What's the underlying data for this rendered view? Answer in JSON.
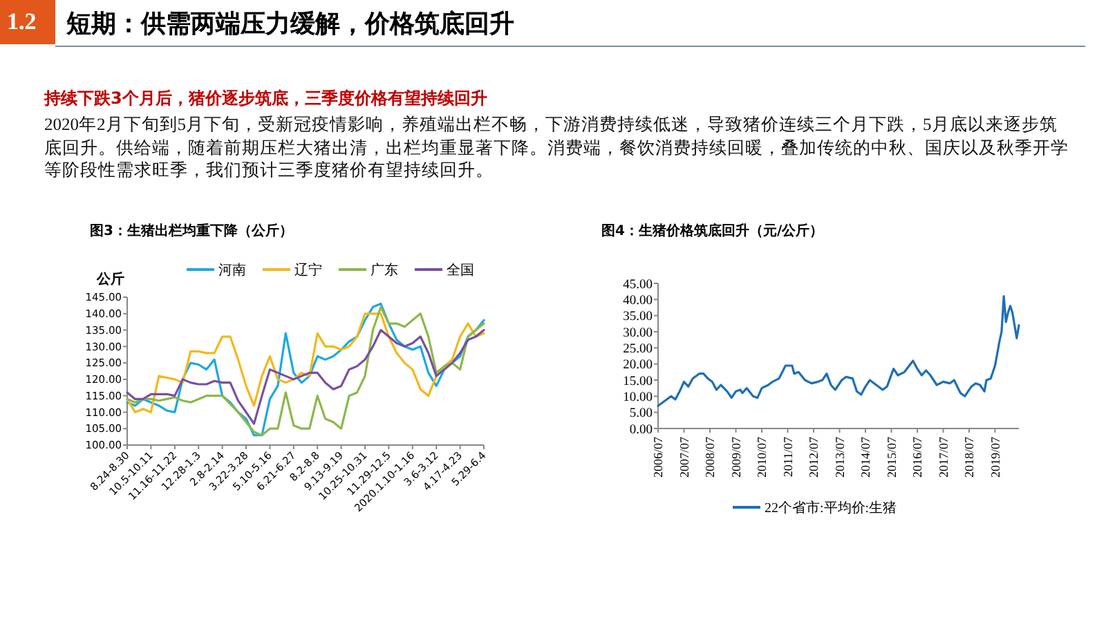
{
  "chart_data": [
    {
      "type": "other",
      "title": "短期：供需两端压力缓解，价格筑底回升",
      "subtitle": "持续下跌3个月后，猪价逐步筑底，三季度价格有望持续回升",
      "annotations": [
        "1.2",
        "2020年2月下旬到5月下旬，受新冠疫情影响，养殖端出栏不畅，下游消费持续低迷，导致猪价连续三个月下跌，5月底以来逐步筑底回升。供给端，随着前期压栏大猪出清，出栏均重显著下降。消费端，餐饮消费持续回暖，叠加传统的中秋、国庆以及秋季开学等阶段性需求旺季，我们预计三季度猪价有望持续回升。"
      ]
    },
    {
      "type": "line",
      "title": "图3：生猪出栏均重下降（公斤）",
      "ylabel": "公斤",
      "legend": "top",
      "categories": [
        "8.24-8.30",
        null,
        null,
        "10.5-10.11",
        null,
        null,
        "11.16-11.22",
        null,
        null,
        "12.28-1.3",
        null,
        null,
        "2.8-2.14",
        null,
        null,
        "3.22-3.28",
        null,
        null,
        "5.10-5.16",
        null,
        null,
        "6.21-6.27",
        null,
        null,
        "8.2-8.8",
        null,
        null,
        "9.13-9.19",
        null,
        null,
        "10.25-10.31",
        null,
        null,
        "11.29-12.5",
        null,
        null,
        "2020.1.10-1.16",
        null,
        null,
        "3.6-3.12",
        null,
        null,
        "4.17-4.23",
        null,
        null,
        "5.29-6.4"
      ],
      "ylim": [
        100,
        145
      ],
      "yticks": [
        {
          "value": 100,
          "label": "100.00"
        },
        {
          "value": 105,
          "label": "105.00"
        },
        {
          "value": 110,
          "label": "110.00"
        },
        {
          "value": 115,
          "label": "115.00"
        },
        {
          "value": 120,
          "label": "120.00"
        },
        {
          "value": 125,
          "label": "125.00"
        },
        {
          "value": 130,
          "label": "130.00"
        },
        {
          "value": 135,
          "label": "135.00"
        },
        {
          "value": 140,
          "label": "140.00"
        },
        {
          "value": 145,
          "label": "145.00"
        }
      ],
      "series": [
        {
          "name": "河南",
          "color": "#1fa8e0",
          "values": [
            113,
            112,
            114,
            113,
            112,
            110.5,
            110,
            120,
            125,
            124.5,
            123,
            126,
            115,
            113,
            110,
            108,
            103,
            103,
            114,
            118,
            134,
            122,
            119,
            121,
            127,
            126,
            127,
            129,
            131.5,
            133,
            138,
            142,
            143,
            137,
            132,
            130,
            129,
            130,
            122,
            118,
            123,
            125,
            127,
            133,
            135,
            138
          ]
        },
        {
          "name": "辽宁",
          "color": "#f2b81c",
          "values": [
            114,
            110,
            111,
            110,
            121,
            120.5,
            120,
            119,
            128.5,
            128.5,
            128,
            128,
            133,
            133,
            126,
            118,
            112,
            121,
            127,
            120,
            119,
            120,
            122,
            121,
            134,
            130,
            130,
            129,
            130,
            133,
            140,
            140,
            140,
            133,
            128,
            125,
            123,
            117,
            115,
            121,
            124,
            126,
            133,
            137,
            133,
            134
          ]
        },
        {
          "name": "广东",
          "color": "#8cb84a",
          "values": [
            114,
            113,
            114,
            114,
            113.5,
            114,
            114.5,
            113.5,
            113,
            114,
            115,
            115,
            115,
            112.5,
            110,
            107,
            104,
            103,
            105,
            105,
            116,
            106,
            105,
            105,
            115,
            108,
            107,
            105,
            115,
            116,
            121,
            135,
            142,
            137,
            137,
            136,
            138,
            140,
            133,
            122,
            124,
            125,
            123,
            133,
            135,
            137
          ]
        },
        {
          "name": "全国",
          "color": "#7a4fa0",
          "values": [
            116,
            114,
            114,
            115.5,
            115.5,
            115.5,
            115,
            120,
            119,
            118.5,
            118.5,
            119.5,
            119,
            119,
            113.5,
            110,
            106.5,
            115,
            123,
            122,
            121,
            120,
            121,
            122,
            122,
            119,
            117,
            118,
            123,
            124,
            126,
            130,
            135,
            133,
            131,
            130,
            131,
            133,
            128,
            121,
            123,
            125,
            128,
            132,
            133,
            135
          ]
        }
      ]
    },
    {
      "type": "line",
      "title": "图4：生猪价格筑底回升（元/公斤）",
      "legend": "bottom",
      "xlim": [
        "2006-07",
        "2020-06"
      ],
      "xticks": [
        {
          "value": "2006-07",
          "label": "2006/07"
        },
        {
          "value": "2007-07",
          "label": "2007/07"
        },
        {
          "value": "2008-07",
          "label": "2008/07"
        },
        {
          "value": "2009-07",
          "label": "2009/07"
        },
        {
          "value": "2010-07",
          "label": "2010/07"
        },
        {
          "value": "2011-07",
          "label": "2011/07"
        },
        {
          "value": "2012-07",
          "label": "2012/07"
        },
        {
          "value": "2013-07",
          "label": "2013/07"
        },
        {
          "value": "2014-07",
          "label": "2014/07"
        },
        {
          "value": "2015-07",
          "label": "2015/07"
        },
        {
          "value": "2016-07",
          "label": "2016/07"
        },
        {
          "value": "2017-07",
          "label": "2017/07"
        },
        {
          "value": "2018-07",
          "label": "2018/07"
        },
        {
          "value": "2019-07",
          "label": "2019/07"
        }
      ],
      "ylim": [
        0,
        45
      ],
      "yticks": [
        {
          "value": 0,
          "label": "0.00"
        },
        {
          "value": 5,
          "label": "5.00"
        },
        {
          "value": 10,
          "label": "10.00"
        },
        {
          "value": 15,
          "label": "15.00"
        },
        {
          "value": 20,
          "label": "20.00"
        },
        {
          "value": 25,
          "label": "25.00"
        },
        {
          "value": 30,
          "label": "30.00"
        },
        {
          "value": 35,
          "label": "35.00"
        },
        {
          "value": 40,
          "label": "40.00"
        },
        {
          "value": 45,
          "label": "45.00"
        }
      ],
      "series": [
        {
          "name": "22个省市:平均价:生猪",
          "color": "#1f6fb5",
          "x": [
            "2006-07",
            "2006-10",
            "2007-01",
            "2007-03",
            "2007-05",
            "2007-07",
            "2007-09",
            "2007-11",
            "2008-02",
            "2008-04",
            "2008-06",
            "2008-08",
            "2008-10",
            "2008-12",
            "2009-03",
            "2009-05",
            "2009-07",
            "2009-09",
            "2009-10",
            "2009-12",
            "2010-03",
            "2010-05",
            "2010-07",
            "2010-10",
            "2010-12",
            "2011-03",
            "2011-06",
            "2011-09",
            "2011-10",
            "2011-12",
            "2012-03",
            "2012-06",
            "2012-09",
            "2012-11",
            "2013-01",
            "2013-03",
            "2013-05",
            "2013-08",
            "2013-10",
            "2014-01",
            "2014-03",
            "2014-05",
            "2014-07",
            "2014-09",
            "2014-11",
            "2015-03",
            "2015-05",
            "2015-08",
            "2015-10",
            "2016-01",
            "2016-05",
            "2016-07",
            "2016-09",
            "2016-11",
            "2017-01",
            "2017-04",
            "2017-07",
            "2017-10",
            "2017-12",
            "2018-03",
            "2018-05",
            "2018-08",
            "2018-10",
            "2018-12",
            "2019-02",
            "2019-03",
            "2019-05",
            "2019-07",
            "2019-09",
            "2019-10",
            "2019-11",
            "2019-12",
            "2020-01",
            "2020-02",
            "2020-03",
            "2020-04",
            "2020-05",
            "2020-06"
          ],
          "values": [
            7,
            8.5,
            10,
            9,
            11.5,
            14.5,
            13,
            15.5,
            17,
            17,
            15.5,
            14.5,
            12,
            13.5,
            11.5,
            9.5,
            11.5,
            12,
            11,
            12.5,
            10,
            9.5,
            12.5,
            13.5,
            14.5,
            15.5,
            19.5,
            19.5,
            17,
            17.5,
            15,
            14,
            14.5,
            15,
            17,
            13.5,
            12,
            15,
            16,
            15.5,
            11.5,
            10.5,
            13,
            15,
            14,
            12,
            13,
            18.5,
            16.5,
            17.5,
            21,
            18.5,
            16.5,
            18,
            16.5,
            13.5,
            14.5,
            14,
            15,
            11,
            10,
            13,
            14,
            13.5,
            11.5,
            15,
            15.5,
            19.5,
            27,
            30,
            41,
            33,
            36,
            38,
            36,
            32,
            28,
            32
          ]
        }
      ]
    }
  ]
}
